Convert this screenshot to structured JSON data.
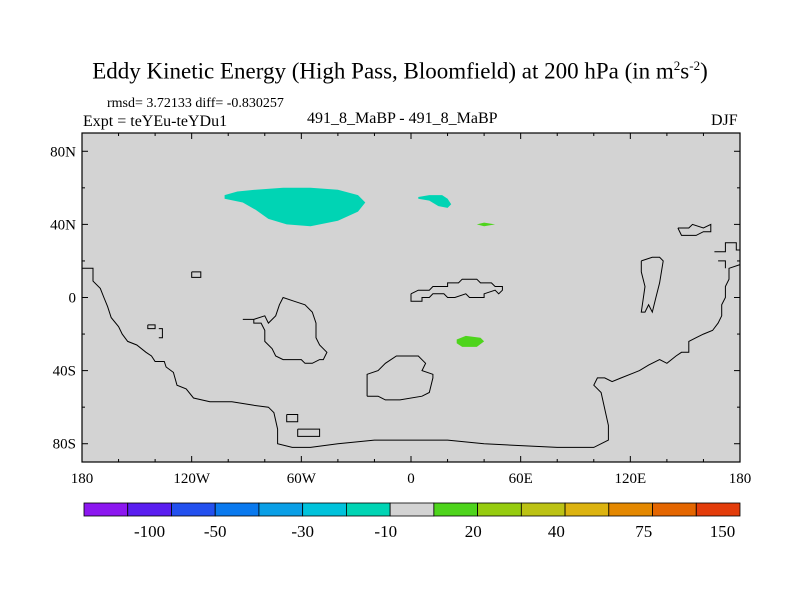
{
  "header": {
    "title_main": "Eddy Kinetic Energy (High Pass, Bloomfield) at 200 hPa (in m",
    "title_sup1": "2",
    "title_s": "s",
    "title_sup2": "-2",
    "title_close": ")",
    "stats": "rmsd= 3.72133 diff= -0.830257",
    "expt": "Expt = teYEu-teYDu1",
    "center": "491_8_MaBP - 491_8_MaBP",
    "season": "DJF"
  },
  "chart_data": {
    "type": "contour-map",
    "title": "Eddy Kinetic Energy (High Pass, Bloomfield) at 200 hPa (in m2s-2)",
    "xlim": [
      -180,
      180
    ],
    "ylim": [
      -90,
      90
    ],
    "x_ticks": [
      {
        "value": -180,
        "label": "180"
      },
      {
        "value": -120,
        "label": "120W"
      },
      {
        "value": -60,
        "label": "60W"
      },
      {
        "value": 0,
        "label": "0"
      },
      {
        "value": 60,
        "label": "60E"
      },
      {
        "value": 120,
        "label": "120E"
      },
      {
        "value": 180,
        "label": "180"
      }
    ],
    "y_ticks": [
      {
        "value": 80,
        "label": "80N"
      },
      {
        "value": 40,
        "label": "40N"
      },
      {
        "value": 0,
        "label": "0"
      },
      {
        "value": -40,
        "label": "40S"
      },
      {
        "value": -80,
        "label": "80S"
      }
    ],
    "background_color": "#d3d3d3",
    "anomaly_regions": [
      {
        "name": "north-atlantic-negative",
        "class": "-10 to -5",
        "color": "#00d4b4",
        "polygon": [
          [
            -102,
            56
          ],
          [
            -95,
            58
          ],
          [
            -85,
            59
          ],
          [
            -70,
            60
          ],
          [
            -55,
            60
          ],
          [
            -40,
            59
          ],
          [
            -29,
            56
          ],
          [
            -25,
            52
          ],
          [
            -29,
            47
          ],
          [
            -40,
            42
          ],
          [
            -55,
            39
          ],
          [
            -68,
            40
          ],
          [
            -78,
            43
          ],
          [
            -85,
            48
          ],
          [
            -92,
            52
          ],
          [
            -102,
            54
          ]
        ]
      },
      {
        "name": "europe-negative",
        "class": "-10 to -5",
        "color": "#00d4b4",
        "polygon": [
          [
            4,
            55
          ],
          [
            10,
            56
          ],
          [
            17,
            56
          ],
          [
            20,
            54
          ],
          [
            22,
            51
          ],
          [
            20,
            49
          ],
          [
            15,
            50
          ],
          [
            10,
            53
          ],
          [
            4,
            54
          ]
        ]
      },
      {
        "name": "central-asia-positive",
        "class": "5 to 10",
        "color": "#4ed41c",
        "polygon": [
          [
            36,
            40
          ],
          [
            40,
            41
          ],
          [
            46,
            40
          ],
          [
            40,
            39
          ]
        ]
      },
      {
        "name": "south-indian-ocean-positive",
        "class": "5 to 10",
        "color": "#4ed41c",
        "polygon": [
          [
            25,
            -23
          ],
          [
            30,
            -21
          ],
          [
            38,
            -22
          ],
          [
            40,
            -24
          ],
          [
            36,
            -27
          ],
          [
            28,
            -27
          ],
          [
            25,
            -25
          ]
        ]
      }
    ],
    "colorbar": {
      "colors": [
        "#8c17f0",
        "#5a1ef0",
        "#2350ee",
        "#0a79ee",
        "#0a9fe6",
        "#00c2db",
        "#00d4b4",
        "#d3d3d3",
        "#4ed41c",
        "#96cc0f",
        "#bcc214",
        "#dcb310",
        "#e48800",
        "#e46600",
        "#e33c0a"
      ],
      "tick_labels": [
        "-100",
        "-50",
        "-30",
        "-10",
        "20",
        "40",
        "75",
        "150"
      ]
    }
  }
}
